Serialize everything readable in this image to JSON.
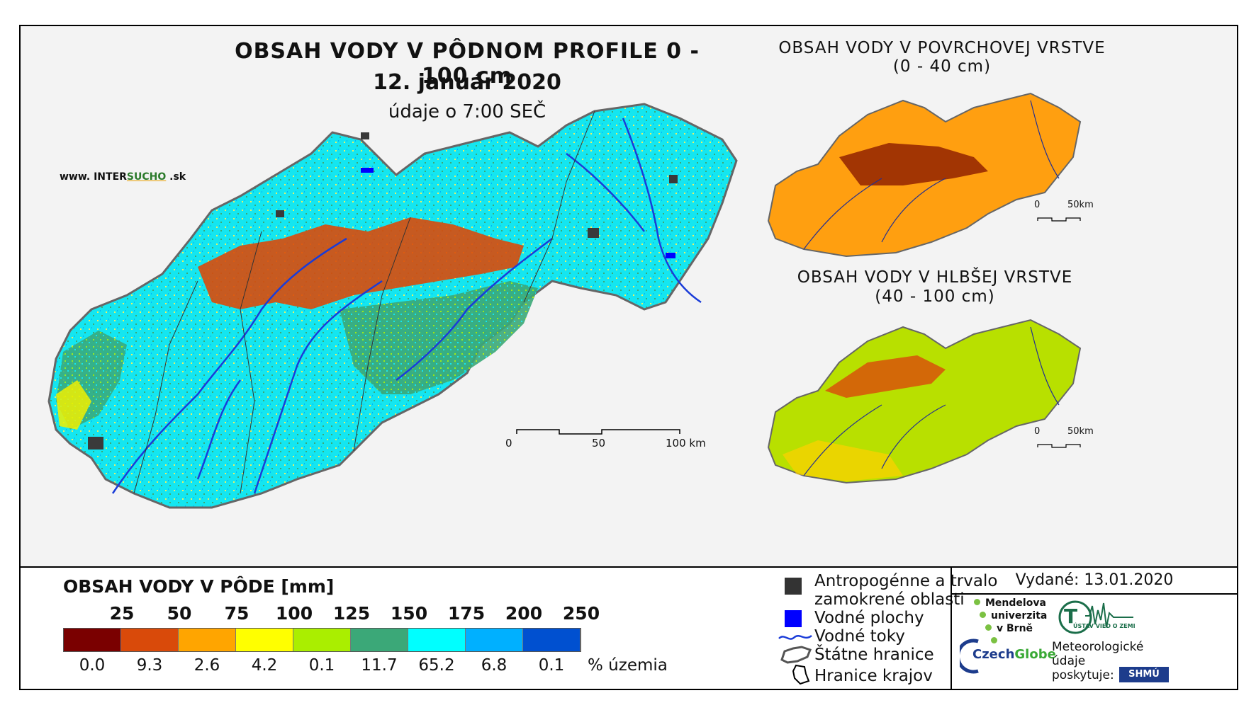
{
  "map": {
    "title": "OBSAH VODY V PÔDNOM PROFILE 0 - 100 cm",
    "date": "12. január 2020",
    "time_note": "údaje o 7:00 SEČ",
    "website_prefix": "www. INTER",
    "website_brand": "SUCHO",
    "website_suffix": " .sk",
    "main_scale": [
      "0",
      "50",
      "100 km"
    ],
    "inset_top_title_1": "OBSAH VODY V POVRCHOVEJ VRSTVE",
    "inset_top_title_2": "(0 - 40 cm)",
    "inset_bottom_title_1": "OBSAH VODY V HLBŠEJ VRSTVE",
    "inset_bottom_title_2": "(40 - 100 cm)",
    "inset_scale": [
      "0",
      "50km"
    ]
  },
  "legend": {
    "title": "OBSAH VODY V PÔDE [mm]",
    "bin_labels": [
      "25",
      "50",
      "75",
      "100",
      "125",
      "150",
      "175",
      "200",
      "250"
    ],
    "colors": [
      "#7a0000",
      "#d94a0a",
      "#ffa500",
      "#ffff00",
      "#aaee00",
      "#3ba878",
      "#00ffff",
      "#00b0ff",
      "#0050d0"
    ],
    "percentages": [
      "0.0",
      "9.3",
      "2.6",
      "4.2",
      "0.1",
      "11.7",
      "65.2",
      "6.8",
      "0.1"
    ],
    "percent_unit": "% územia",
    "items": {
      "anthropogenic_1": "Antropogénne a trvalo",
      "anthropogenic_2": "zamokrené oblasti",
      "water_bodies": "Vodné plochy",
      "streams": "Vodné toky",
      "state_border": "Štátne hranice",
      "region_border": "Hranice krajov"
    }
  },
  "info": {
    "issued": "Vydané: 13.01.2020",
    "mendel_1": "Mendelova",
    "mendel_2": "univerzita",
    "mendel_3": "v Brně",
    "czechglobe_1": "Czech",
    "czechglobe_2": "Globe",
    "meteo_1": "Meteorologické",
    "meteo_2": "údaje",
    "meteo_3": "poskytuje:",
    "shmu": "SHMÚ",
    "ustav": "ÚSTAV VIED O ZEMI"
  }
}
